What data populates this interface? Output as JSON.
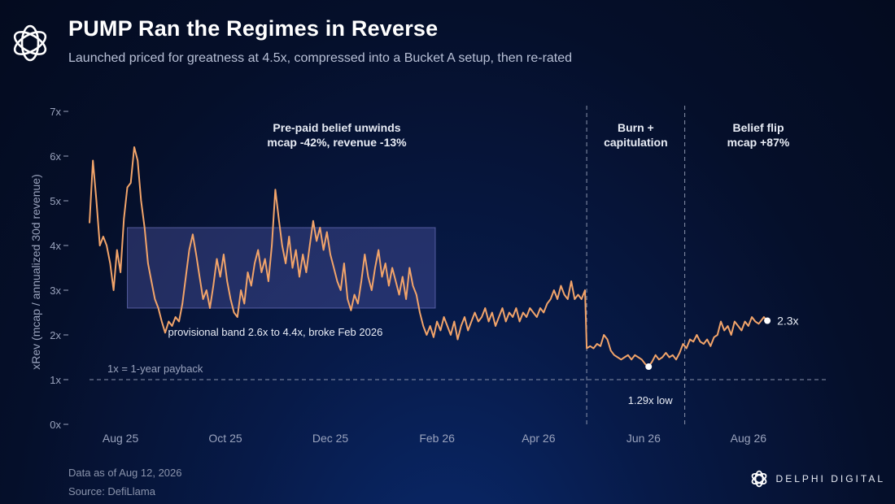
{
  "header": {
    "title": "PUMP Ran the Regimes in Reverse",
    "subtitle": "Launched priced for greatness at 4.5x, compressed into a Bucket A setup, then re-rated"
  },
  "footer": {
    "data_as_of": "Data as of Aug 12, 2026",
    "source": "Source: DefiLlama"
  },
  "brand": {
    "name": "DELPHI DIGITAL",
    "icon": "delphi-logo-icon"
  },
  "colors": {
    "line": "#f2a46a",
    "band": "#5c62b8",
    "background": "#061640",
    "text": "#e8ecf5",
    "muted": "#9aa3bd"
  },
  "chart_data": {
    "type": "line",
    "ylabel": "xRev (mcap / annualized 30d revenue)",
    "ylim": [
      0,
      7
    ],
    "yticks": [
      "0x",
      "1x",
      "2x",
      "3x",
      "4x",
      "5x",
      "6x",
      "7x"
    ],
    "xlim": [
      "2025-07-14",
      "2026-09-15"
    ],
    "xticks": [
      {
        "label": "Aug 25",
        "date": "2025-08-01"
      },
      {
        "label": "Oct 25",
        "date": "2025-10-01"
      },
      {
        "label": "Dec 25",
        "date": "2025-12-01"
      },
      {
        "label": "Feb 26",
        "date": "2026-02-01"
      },
      {
        "label": "Apr 26",
        "date": "2026-04-01"
      },
      {
        "label": "Jun 26",
        "date": "2026-06-01"
      },
      {
        "label": "Aug 26",
        "date": "2026-08-01"
      }
    ],
    "grid": false,
    "series": [
      {
        "points": [
          [
            "2025-07-14",
            4.5
          ],
          [
            "2025-07-16",
            5.9
          ],
          [
            "2025-07-18",
            5.0
          ],
          [
            "2025-07-20",
            4.0
          ],
          [
            "2025-07-22",
            4.2
          ],
          [
            "2025-07-24",
            4.0
          ],
          [
            "2025-07-26",
            3.6
          ],
          [
            "2025-07-28",
            3.0
          ],
          [
            "2025-07-30",
            3.9
          ],
          [
            "2025-08-01",
            3.4
          ],
          [
            "2025-08-03",
            4.6
          ],
          [
            "2025-08-05",
            5.3
          ],
          [
            "2025-08-07",
            5.4
          ],
          [
            "2025-08-09",
            6.2
          ],
          [
            "2025-08-11",
            5.9
          ],
          [
            "2025-08-13",
            5.0
          ],
          [
            "2025-08-15",
            4.4
          ],
          [
            "2025-08-17",
            3.6
          ],
          [
            "2025-08-19",
            3.2
          ],
          [
            "2025-08-21",
            2.8
          ],
          [
            "2025-08-23",
            2.6
          ],
          [
            "2025-08-25",
            2.3
          ],
          [
            "2025-08-27",
            2.05
          ],
          [
            "2025-08-29",
            2.3
          ],
          [
            "2025-08-31",
            2.2
          ],
          [
            "2025-09-02",
            2.4
          ],
          [
            "2025-09-04",
            2.3
          ],
          [
            "2025-09-06",
            2.7
          ],
          [
            "2025-09-08",
            3.3
          ],
          [
            "2025-09-10",
            3.9
          ],
          [
            "2025-09-12",
            4.25
          ],
          [
            "2025-09-14",
            3.8
          ],
          [
            "2025-09-16",
            3.3
          ],
          [
            "2025-09-18",
            2.8
          ],
          [
            "2025-09-20",
            3.0
          ],
          [
            "2025-09-22",
            2.6
          ],
          [
            "2025-09-24",
            3.1
          ],
          [
            "2025-09-26",
            3.7
          ],
          [
            "2025-09-28",
            3.3
          ],
          [
            "2025-09-30",
            3.8
          ],
          [
            "2025-10-02",
            3.2
          ],
          [
            "2025-10-04",
            2.8
          ],
          [
            "2025-10-06",
            2.5
          ],
          [
            "2025-10-08",
            2.4
          ],
          [
            "2025-10-10",
            3.0
          ],
          [
            "2025-10-12",
            2.7
          ],
          [
            "2025-10-14",
            3.4
          ],
          [
            "2025-10-16",
            3.1
          ],
          [
            "2025-10-18",
            3.6
          ],
          [
            "2025-10-20",
            3.9
          ],
          [
            "2025-10-22",
            3.4
          ],
          [
            "2025-10-24",
            3.7
          ],
          [
            "2025-10-26",
            3.2
          ],
          [
            "2025-10-28",
            4.0
          ],
          [
            "2025-10-30",
            5.25
          ],
          [
            "2025-11-01",
            4.6
          ],
          [
            "2025-11-03",
            4.0
          ],
          [
            "2025-11-05",
            3.6
          ],
          [
            "2025-11-07",
            4.2
          ],
          [
            "2025-11-09",
            3.5
          ],
          [
            "2025-11-11",
            3.9
          ],
          [
            "2025-11-13",
            3.3
          ],
          [
            "2025-11-15",
            3.8
          ],
          [
            "2025-11-17",
            3.4
          ],
          [
            "2025-11-19",
            4.0
          ],
          [
            "2025-11-21",
            4.55
          ],
          [
            "2025-11-23",
            4.1
          ],
          [
            "2025-11-25",
            4.4
          ],
          [
            "2025-11-27",
            3.9
          ],
          [
            "2025-11-29",
            4.3
          ],
          [
            "2025-12-01",
            3.8
          ],
          [
            "2025-12-03",
            3.5
          ],
          [
            "2025-12-05",
            3.2
          ],
          [
            "2025-12-07",
            3.0
          ],
          [
            "2025-12-09",
            3.6
          ],
          [
            "2025-12-11",
            2.8
          ],
          [
            "2025-12-13",
            2.55
          ],
          [
            "2025-12-15",
            2.9
          ],
          [
            "2025-12-17",
            2.7
          ],
          [
            "2025-12-19",
            3.2
          ],
          [
            "2025-12-21",
            3.8
          ],
          [
            "2025-12-23",
            3.3
          ],
          [
            "2025-12-25",
            3.0
          ],
          [
            "2025-12-27",
            3.5
          ],
          [
            "2025-12-29",
            3.9
          ],
          [
            "2025-12-31",
            3.3
          ],
          [
            "2026-01-02",
            3.6
          ],
          [
            "2026-01-04",
            3.1
          ],
          [
            "2026-01-06",
            3.5
          ],
          [
            "2026-01-08",
            3.2
          ],
          [
            "2026-01-10",
            2.9
          ],
          [
            "2026-01-12",
            3.3
          ],
          [
            "2026-01-14",
            2.8
          ],
          [
            "2026-01-16",
            3.5
          ],
          [
            "2026-01-18",
            3.1
          ],
          [
            "2026-01-20",
            2.9
          ],
          [
            "2026-01-22",
            2.5
          ],
          [
            "2026-01-24",
            2.2
          ],
          [
            "2026-01-26",
            2.0
          ],
          [
            "2026-01-28",
            2.2
          ],
          [
            "2026-01-30",
            1.95
          ],
          [
            "2026-02-01",
            2.3
          ],
          [
            "2026-02-03",
            2.1
          ],
          [
            "2026-02-05",
            2.4
          ],
          [
            "2026-02-07",
            2.2
          ],
          [
            "2026-02-09",
            2.0
          ],
          [
            "2026-02-11",
            2.3
          ],
          [
            "2026-02-13",
            1.9
          ],
          [
            "2026-02-15",
            2.2
          ],
          [
            "2026-02-17",
            2.4
          ],
          [
            "2026-02-19",
            2.1
          ],
          [
            "2026-02-21",
            2.3
          ],
          [
            "2026-02-23",
            2.5
          ],
          [
            "2026-02-25",
            2.3
          ],
          [
            "2026-02-27",
            2.4
          ],
          [
            "2026-03-01",
            2.6
          ],
          [
            "2026-03-03",
            2.3
          ],
          [
            "2026-03-05",
            2.5
          ],
          [
            "2026-03-07",
            2.2
          ],
          [
            "2026-03-09",
            2.4
          ],
          [
            "2026-03-11",
            2.6
          ],
          [
            "2026-03-13",
            2.3
          ],
          [
            "2026-03-15",
            2.5
          ],
          [
            "2026-03-17",
            2.4
          ],
          [
            "2026-03-19",
            2.6
          ],
          [
            "2026-03-21",
            2.3
          ],
          [
            "2026-03-23",
            2.5
          ],
          [
            "2026-03-25",
            2.4
          ],
          [
            "2026-03-27",
            2.6
          ],
          [
            "2026-03-29",
            2.5
          ],
          [
            "2026-03-31",
            2.4
          ],
          [
            "2026-04-02",
            2.6
          ],
          [
            "2026-04-04",
            2.5
          ],
          [
            "2026-04-06",
            2.7
          ],
          [
            "2026-04-08",
            2.8
          ],
          [
            "2026-04-10",
            3.0
          ],
          [
            "2026-04-12",
            2.8
          ],
          [
            "2026-04-14",
            3.1
          ],
          [
            "2026-04-16",
            2.9
          ],
          [
            "2026-04-18",
            2.8
          ],
          [
            "2026-04-20",
            3.2
          ],
          [
            "2026-04-22",
            2.8
          ],
          [
            "2026-04-24",
            2.9
          ],
          [
            "2026-04-26",
            2.8
          ],
          [
            "2026-04-28",
            3.0
          ],
          [
            "2026-04-29",
            1.7
          ],
          [
            "2026-05-01",
            1.75
          ],
          [
            "2026-05-03",
            1.7
          ],
          [
            "2026-05-05",
            1.8
          ],
          [
            "2026-05-07",
            1.75
          ],
          [
            "2026-05-09",
            2.0
          ],
          [
            "2026-05-11",
            1.9
          ],
          [
            "2026-05-13",
            1.65
          ],
          [
            "2026-05-15",
            1.55
          ],
          [
            "2026-05-17",
            1.5
          ],
          [
            "2026-05-19",
            1.45
          ],
          [
            "2026-05-21",
            1.5
          ],
          [
            "2026-05-23",
            1.55
          ],
          [
            "2026-05-25",
            1.45
          ],
          [
            "2026-05-27",
            1.55
          ],
          [
            "2026-05-29",
            1.5
          ],
          [
            "2026-05-31",
            1.45
          ],
          [
            "2026-06-02",
            1.35
          ],
          [
            "2026-06-04",
            1.29
          ],
          [
            "2026-06-06",
            1.4
          ],
          [
            "2026-06-08",
            1.55
          ],
          [
            "2026-06-10",
            1.45
          ],
          [
            "2026-06-12",
            1.5
          ],
          [
            "2026-06-14",
            1.6
          ],
          [
            "2026-06-16",
            1.5
          ],
          [
            "2026-06-18",
            1.55
          ],
          [
            "2026-06-20",
            1.45
          ],
          [
            "2026-06-22",
            1.6
          ],
          [
            "2026-06-24",
            1.8
          ],
          [
            "2026-06-26",
            1.7
          ],
          [
            "2026-06-28",
            1.9
          ],
          [
            "2026-06-30",
            1.85
          ],
          [
            "2026-07-02",
            2.0
          ],
          [
            "2026-07-04",
            1.85
          ],
          [
            "2026-07-06",
            1.8
          ],
          [
            "2026-07-08",
            1.9
          ],
          [
            "2026-07-10",
            1.75
          ],
          [
            "2026-07-12",
            1.95
          ],
          [
            "2026-07-14",
            2.0
          ],
          [
            "2026-07-16",
            2.3
          ],
          [
            "2026-07-18",
            2.1
          ],
          [
            "2026-07-20",
            2.2
          ],
          [
            "2026-07-22",
            2.0
          ],
          [
            "2026-07-24",
            2.3
          ],
          [
            "2026-07-26",
            2.2
          ],
          [
            "2026-07-28",
            2.1
          ],
          [
            "2026-07-30",
            2.3
          ],
          [
            "2026-08-01",
            2.2
          ],
          [
            "2026-08-03",
            2.4
          ],
          [
            "2026-08-05",
            2.3
          ],
          [
            "2026-08-07",
            2.25
          ],
          [
            "2026-08-10",
            2.4
          ],
          [
            "2026-08-12",
            2.3
          ]
        ]
      }
    ],
    "band": {
      "y0": 2.6,
      "y1": 4.4,
      "x0": "2025-08-05",
      "x1": "2026-01-31",
      "label": "provisional band 2.6x to 4.4x, broke Feb 2026"
    },
    "reference_line": {
      "y": 1,
      "label": "1x = 1-year payback"
    },
    "vlines": [
      "2026-04-29",
      "2026-06-25"
    ],
    "annotations": {
      "region1": [
        "Pre-paid belief unwinds",
        "mcap -42%, revenue -13%"
      ],
      "region2": [
        "Burn +",
        "capitulation"
      ],
      "region3": [
        "Belief flip",
        "mcap +87%"
      ],
      "low": {
        "date": "2026-06-04",
        "value": 1.29,
        "label": "1.29x low"
      },
      "end": {
        "date": "2026-08-12",
        "value": 2.3,
        "label": "2.3x"
      }
    }
  }
}
